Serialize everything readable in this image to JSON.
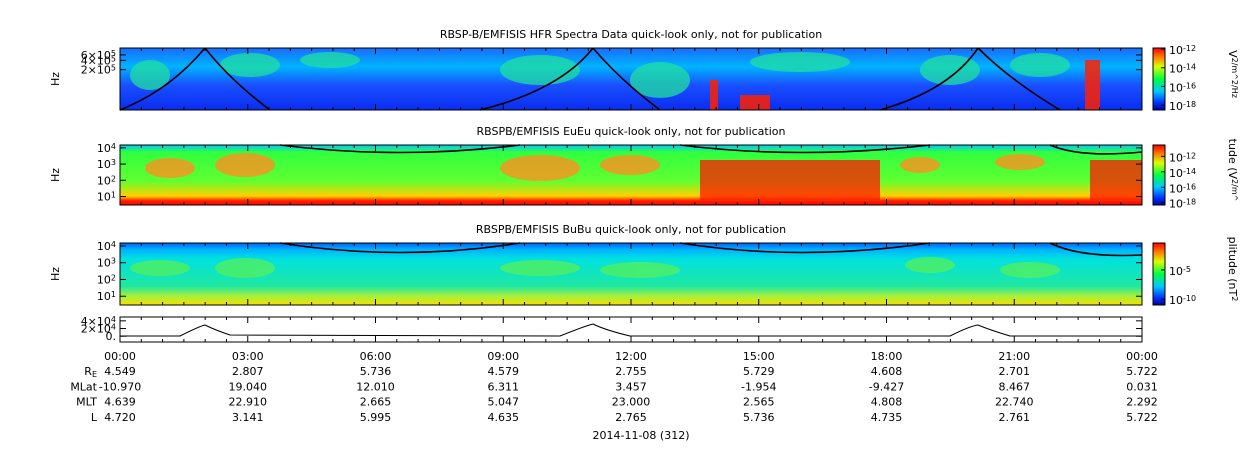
{
  "chart_data": [
    {
      "type": "spectrogram",
      "title": "RBSP-B/EMFISIS  HFR Spectra Data quick-look only, not for publication",
      "ylabel": "Hz",
      "yscale": "log",
      "ylim": [
        10000,
        1000000
      ],
      "yticks": [
        {
          "value": 600000,
          "label": "6×10^5"
        },
        {
          "value": 400000,
          "label": "4×10^5"
        },
        {
          "value": 200000,
          "label": "2×10^5"
        }
      ],
      "colorbar": {
        "label": "V^2/m^2/Hz",
        "clim": [
          3e-19,
          1.3e-12
        ],
        "ticks": [
          {
            "value": 1e-12,
            "label": "10^-12"
          },
          {
            "value": 1e-14,
            "label": "10^-14"
          },
          {
            "value": 1e-16,
            "label": "10^-16"
          },
          {
            "value": 1e-18,
            "label": "10^-18"
          }
        ]
      }
    },
    {
      "type": "spectrogram",
      "title": "RBSPB/EMFISIS  EuEu quick-look only, not for publication",
      "ylabel": "Hz",
      "yscale": "log",
      "ylim": [
        3,
        15000
      ],
      "yticks": [
        {
          "value": 10000,
          "label": "10^4"
        },
        {
          "value": 1000,
          "label": "10^3"
        },
        {
          "value": 100,
          "label": "10^2"
        },
        {
          "value": 10,
          "label": "10^1"
        }
      ],
      "colorbar": {
        "label": "tude (V^2/m^",
        "clim": [
          5e-19,
          3e-11
        ],
        "ticks": [
          {
            "value": 1e-12,
            "label": "10^-12"
          },
          {
            "value": 1e-14,
            "label": "10^-14"
          },
          {
            "value": 1e-16,
            "label": "10^-16"
          },
          {
            "value": 1e-18,
            "label": "10^-18"
          }
        ]
      }
    },
    {
      "type": "spectrogram",
      "title": "RBSPB/EMFISIS  BuBu quick-look only, not for publication",
      "ylabel": "Hz",
      "yscale": "log",
      "ylim": [
        3,
        15000
      ],
      "yticks": [
        {
          "value": 10000,
          "label": "10^4"
        },
        {
          "value": 1000,
          "label": "10^3"
        },
        {
          "value": 100,
          "label": "10^2"
        },
        {
          "value": 10,
          "label": "10^1"
        }
      ],
      "colorbar": {
        "label": "plitude (nT^2",
        "clim": [
          1e-11,
          0.4
        ],
        "ticks": [
          {
            "value": 1e-05,
            "label": "10^-5"
          },
          {
            "value": 1e-10,
            "label": "10^-10"
          }
        ]
      }
    },
    {
      "type": "line",
      "ylim": [
        -15000,
        50000
      ],
      "yticks": [
        {
          "value": 40000,
          "label": "4×10^4"
        },
        {
          "value": 20000,
          "label": "2×10^4"
        },
        {
          "value": 0,
          "label": "0."
        }
      ]
    }
  ],
  "x_axis": {
    "ticks": [
      "00:00",
      "03:00",
      "06:00",
      "09:00",
      "12:00",
      "15:00",
      "18:00",
      "21:00",
      "00:00"
    ],
    "date": "2014-11-08 (312)"
  },
  "ephemeris": [
    {
      "label": "R_E",
      "values": [
        "4.549",
        "2.807",
        "5.736",
        "4.579",
        "2.755",
        "5.729",
        "4.608",
        "2.701",
        "5.722"
      ]
    },
    {
      "label": "MLat",
      "values": [
        "-10.970",
        "19.040",
        "12.010",
        "6.311",
        "3.457",
        "-1.954",
        "-9.427",
        "8.467",
        "0.031"
      ]
    },
    {
      "label": "MLT",
      "values": [
        "4.639",
        "22.910",
        "2.665",
        "5.047",
        "23.000",
        "2.565",
        "4.808",
        "22.740",
        "2.292"
      ]
    },
    {
      "label": "L",
      "values": [
        "4.720",
        "3.141",
        "5.995",
        "4.635",
        "2.765",
        "5.736",
        "4.735",
        "2.761",
        "5.722"
      ]
    }
  ]
}
